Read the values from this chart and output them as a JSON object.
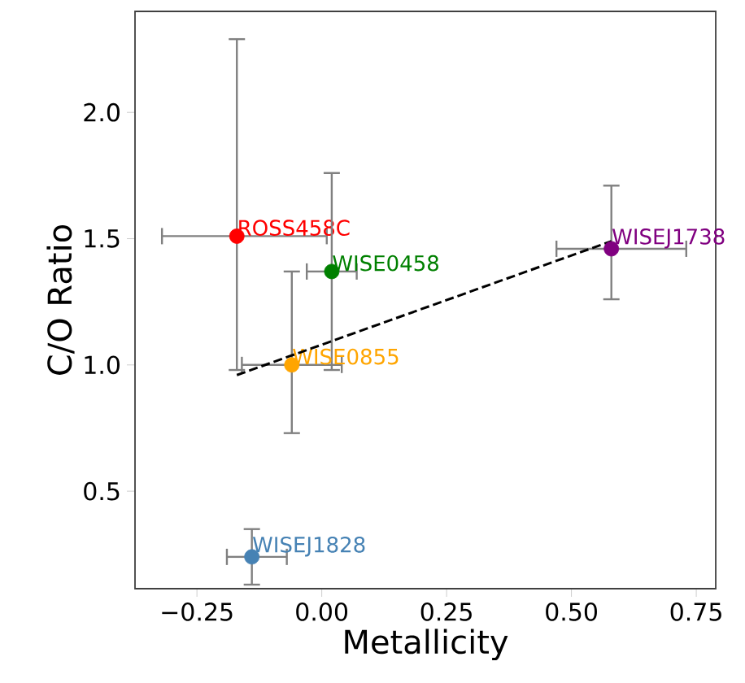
{
  "chart_data": {
    "type": "scatter",
    "xlabel": "Metallicity",
    "ylabel": "C/O Ratio",
    "xlim": [
      -0.374,
      0.789
    ],
    "ylim": [
      0.114,
      2.4
    ],
    "xticks": [
      {
        "value": -0.25,
        "label": "−0.25"
      },
      {
        "value": 0,
        "label": "0.00"
      },
      {
        "value": 0.25,
        "label": "0.25"
      },
      {
        "value": 0.5,
        "label": "0.50"
      },
      {
        "value": 0.75,
        "label": "0.75"
      }
    ],
    "yticks": [
      {
        "value": 0.5,
        "label": "0.5"
      },
      {
        "value": 1,
        "label": "1.0"
      },
      {
        "value": 1.5,
        "label": "1.5"
      },
      {
        "value": 2,
        "label": "2.0"
      }
    ],
    "grid": false,
    "series": [
      {
        "name": "ROSS458C",
        "color": "#ff0000",
        "marker": "circle",
        "x": [
          -0.17
        ],
        "values": [
          1.51
        ],
        "errors": [
          [
            0.98,
            2.29
          ]
        ],
        "xerrors": [
          [
            -0.32,
            0.01
          ]
        ]
      },
      {
        "name": "WISE0458",
        "color": "#008000",
        "marker": "circle",
        "x": [
          0.02
        ],
        "values": [
          1.37
        ],
        "errors": [
          [
            0.98,
            1.76
          ]
        ],
        "xerrors": [
          [
            -0.03,
            0.07
          ]
        ]
      },
      {
        "name": "WISE0855",
        "color": "#ffa500",
        "marker": "circle",
        "x": [
          -0.06
        ],
        "values": [
          1.0
        ],
        "errors": [
          [
            0.73,
            1.37
          ]
        ],
        "xerrors": [
          [
            -0.16,
            0.04
          ]
        ]
      },
      {
        "name": "WISEJ1828",
        "color": "#4682b4",
        "marker": "circle",
        "x": [
          -0.14
        ],
        "values": [
          0.24
        ],
        "errors": [
          [
            0.13,
            0.35
          ]
        ],
        "xerrors": [
          [
            -0.19,
            -0.07
          ]
        ]
      },
      {
        "name": "WISEJ1738",
        "color": "#800080",
        "marker": "circle",
        "x": [
          0.58
        ],
        "values": [
          1.46
        ],
        "errors": [
          [
            1.26,
            1.71
          ]
        ],
        "xerrors": [
          [
            0.47,
            0.73
          ]
        ]
      },
      {
        "type": "line",
        "color": "#000000",
        "line_style": "dashed",
        "marker": "none",
        "x": [
          -0.17,
          0.58
        ],
        "values": [
          0.96,
          1.49
        ]
      }
    ]
  }
}
